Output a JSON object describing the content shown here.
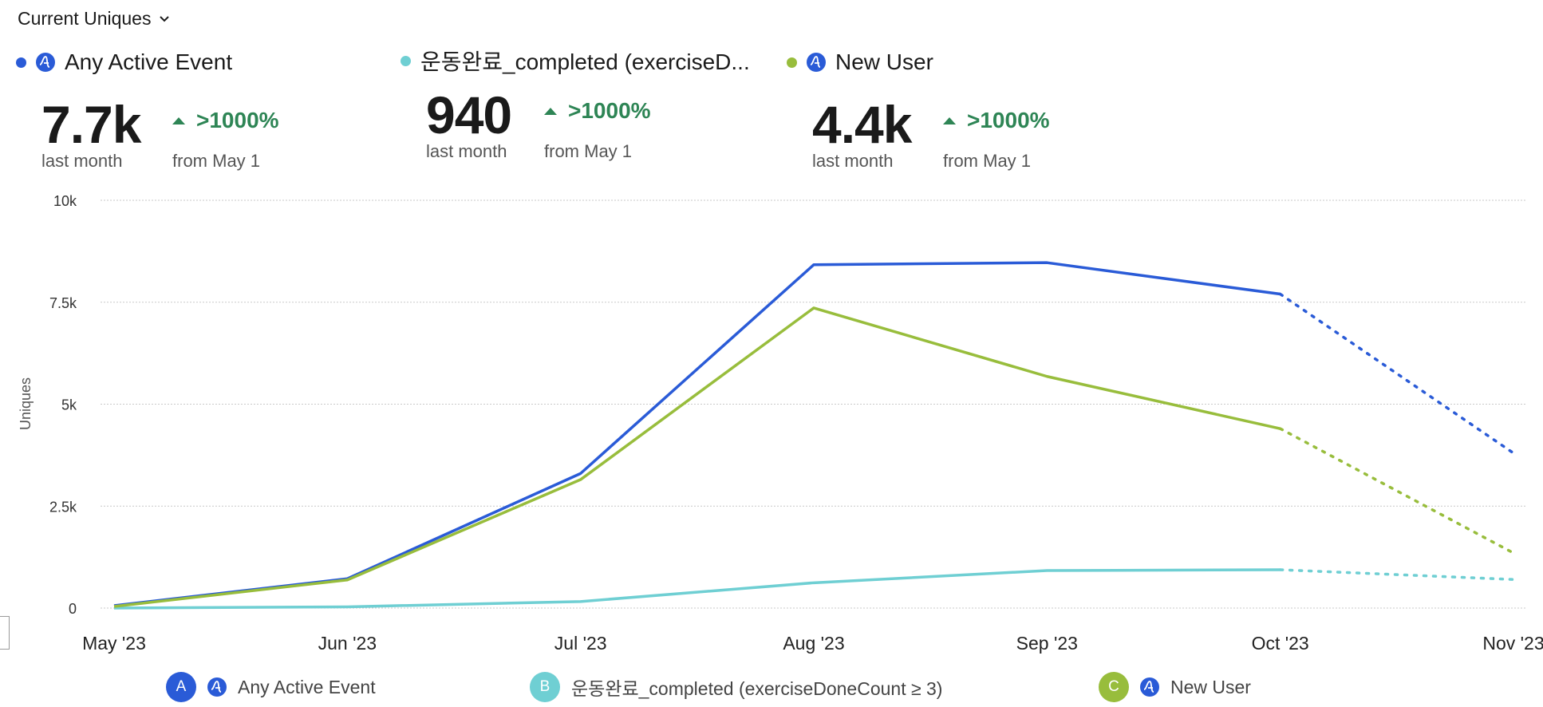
{
  "header": {
    "metric_label": "Current Uniques"
  },
  "colors": {
    "blue": "#2a5bd7",
    "teal": "#6fcfd3",
    "green": "#98bd3c",
    "up": "#2e8555",
    "grid": "#c9c9c9"
  },
  "summaries": [
    {
      "name": "Any Active Event",
      "value": "7.7k",
      "value_caption": "last month",
      "change": ">1000%",
      "change_caption": "from May 1",
      "color": "#2a5bd7",
      "icon": "amplitude-event-icon"
    },
    {
      "name": "운동완료_completed (exerciseD...",
      "value": "940",
      "value_caption": "last month",
      "change": ">1000%",
      "change_caption": "from May 1",
      "color": "#6fcfd3",
      "icon": ""
    },
    {
      "name": "New User",
      "value": "4.4k",
      "value_caption": "last month",
      "change": ">1000%",
      "change_caption": "from May 1",
      "color": "#98bd3c",
      "icon": "amplitude-event-icon"
    }
  ],
  "chart_data": {
    "type": "line",
    "ylabel": "Uniques",
    "xlabel": "",
    "ylim": [
      0,
      10000
    ],
    "yticks": [
      0,
      2500,
      5000,
      7500,
      10000
    ],
    "ytick_labels": [
      "0",
      "2.5k",
      "5k",
      "7.5k",
      "10k"
    ],
    "categories": [
      "May '23",
      "Jun '23",
      "Jul '23",
      "Aug '23",
      "Sep '23",
      "Oct '23",
      "Nov '23"
    ],
    "grid": true,
    "projected_from_index": 5,
    "series": [
      {
        "name": "Any Active Event",
        "color": "#2a5bd7",
        "values": [
          60,
          720,
          3300,
          8420,
          8470,
          7700,
          3800
        ]
      },
      {
        "name": "운동완료_completed (exerciseDoneCount ≥ 3)",
        "color": "#6fcfd3",
        "values": [
          0,
          30,
          160,
          620,
          920,
          940,
          700
        ]
      },
      {
        "name": "New User",
        "color": "#98bd3c",
        "values": [
          40,
          690,
          3150,
          7360,
          5680,
          4400,
          1350
        ]
      }
    ]
  },
  "legend": [
    {
      "badge": "A",
      "label": "Any Active Event",
      "color": "#2a5bd7",
      "has_icon": true
    },
    {
      "badge": "B",
      "label": "운동완료_completed (exerciseDoneCount ≥ 3)",
      "color": "#6fcfd3",
      "has_icon": false
    },
    {
      "badge": "C",
      "label": "New User",
      "color": "#98bd3c",
      "has_icon": true
    }
  ]
}
